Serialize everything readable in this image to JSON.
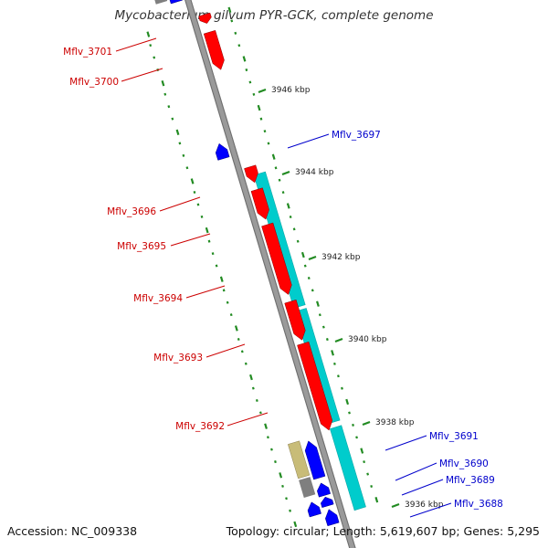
{
  "title": "Mycobacterium gilvum PYR-GCK, complete genome",
  "footer": {
    "accession": "Accession: NC_009338",
    "summary": "Topology: circular; Length: 5,619,607 bp; Genes: 5,295"
  },
  "colors": {
    "forward_gene": "#ff0000",
    "reverse_gene": "#0000ff",
    "rna_gene": "#00cccc",
    "other_gene": "#c8bc78",
    "backbone": "#888888",
    "gc_ticks": "#228b22",
    "forward_label": "#cc0000",
    "reverse_label": "#0000cc"
  },
  "kbp_marks": [
    "3946 kbp",
    "3944 kbp",
    "3942 kbp",
    "3940 kbp",
    "3938 kbp",
    "3936 kbp"
  ],
  "gene_labels": {
    "forward": [
      "Mflv_3701",
      "Mflv_3700",
      "Mflv_3696",
      "Mflv_3695",
      "Mflv_3694",
      "Mflv_3693",
      "Mflv_3692"
    ],
    "reverse": [
      "Mflv_3697",
      "Mflv_3691",
      "Mflv_3690",
      "Mflv_3689",
      "Mflv_3688"
    ]
  }
}
